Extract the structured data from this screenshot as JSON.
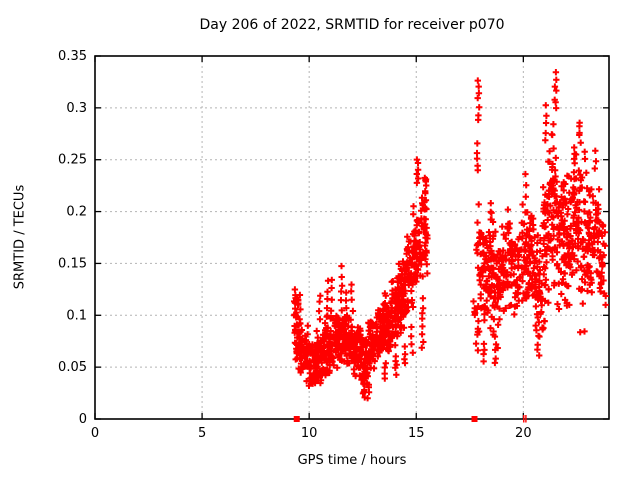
{
  "window": {
    "background": "#ffffff",
    "text_color": "#000000"
  },
  "chart_data": {
    "type": "scatter",
    "title": "Day 206 of 2022, SRMTID for receiver p070",
    "xlabel": "GPS time / hours",
    "ylabel": "SRMTID / TECUs",
    "xlim": [
      0,
      24
    ],
    "ylim": [
      0,
      0.35
    ],
    "xticks": [
      0,
      5,
      10,
      15,
      20
    ],
    "xtick_labels": [
      "0",
      "5",
      "10",
      "15",
      "20"
    ],
    "yticks": [
      0,
      0.05,
      0.1,
      0.15,
      0.2,
      0.25,
      0.3,
      0.35
    ],
    "ytick_labels": [
      "0",
      "0.05",
      "0.1",
      "0.15",
      "0.2",
      "0.25",
      "0.3",
      "0.35"
    ],
    "grid": {
      "show": true,
      "style": "dashed",
      "color": "#b4b4b4"
    },
    "legend": {
      "show": false
    },
    "marker": {
      "shape": "plus",
      "color": "#ff0000",
      "size": 7
    },
    "axis_color": "#000000",
    "seed": 1234,
    "approx_point_count": 1850,
    "data_coverage": {
      "gap_hours": [
        [
          0,
          9.3
        ],
        [
          15.6,
          17.65
        ],
        [
          23.85,
          24
        ]
      ]
    },
    "series": [
      {
        "name": "SRMTID",
        "point_clusters": [
          [
            9.3,
            9.6,
            48,
            0.042,
            0.115
          ],
          [
            9.3,
            9.6,
            12,
            0.1,
            0.128
          ],
          [
            9.6,
            9.95,
            48,
            0.033,
            0.095
          ],
          [
            9.95,
            10.3,
            52,
            0.028,
            0.082
          ],
          [
            10.3,
            10.65,
            55,
            0.03,
            0.088
          ],
          [
            10.65,
            11.0,
            55,
            0.038,
            0.1
          ],
          [
            11.0,
            11.35,
            52,
            0.045,
            0.105
          ],
          [
            11.35,
            11.7,
            55,
            0.048,
            0.108
          ],
          [
            11.7,
            12.05,
            55,
            0.045,
            0.1
          ],
          [
            12.05,
            12.4,
            50,
            0.038,
            0.095
          ],
          [
            12.4,
            12.75,
            48,
            0.028,
            0.088
          ],
          [
            12.75,
            13.1,
            50,
            0.045,
            0.1
          ],
          [
            13.1,
            13.45,
            55,
            0.055,
            0.112
          ],
          [
            13.45,
            13.8,
            58,
            0.058,
            0.125
          ],
          [
            13.8,
            14.15,
            58,
            0.065,
            0.142
          ],
          [
            14.15,
            14.5,
            58,
            0.078,
            0.158
          ],
          [
            14.5,
            14.85,
            55,
            0.092,
            0.18
          ],
          [
            14.85,
            15.2,
            52,
            0.11,
            0.225
          ],
          [
            15.2,
            15.55,
            40,
            0.12,
            0.245
          ],
          [
            17.65,
            17.95,
            14,
            0.058,
            0.12
          ],
          [
            17.8,
            17.98,
            10,
            0.14,
            0.21
          ],
          [
            17.95,
            18.3,
            45,
            0.072,
            0.205
          ],
          [
            18.3,
            18.6,
            50,
            0.082,
            0.218
          ],
          [
            18.6,
            18.9,
            38,
            0.058,
            0.19
          ],
          [
            18.9,
            19.2,
            32,
            0.09,
            0.2
          ],
          [
            19.2,
            19.55,
            40,
            0.1,
            0.22
          ],
          [
            19.55,
            19.9,
            34,
            0.088,
            0.19
          ],
          [
            19.9,
            20.2,
            38,
            0.105,
            0.215
          ],
          [
            20.2,
            20.55,
            45,
            0.1,
            0.212
          ],
          [
            20.55,
            20.9,
            45,
            0.062,
            0.18
          ],
          [
            20.9,
            21.2,
            45,
            0.08,
            0.26
          ],
          [
            21.2,
            21.55,
            50,
            0.118,
            0.3
          ],
          [
            21.55,
            21.9,
            50,
            0.1,
            0.258
          ],
          [
            21.9,
            22.2,
            45,
            0.082,
            0.248
          ],
          [
            22.2,
            22.55,
            45,
            0.118,
            0.262
          ],
          [
            22.55,
            22.9,
            45,
            0.065,
            0.27
          ],
          [
            22.9,
            23.2,
            40,
            0.1,
            0.248
          ],
          [
            23.2,
            23.55,
            35,
            0.118,
            0.238
          ],
          [
            23.55,
            23.85,
            30,
            0.1,
            0.208
          ]
        ],
        "point_columns": [
          [
            10.5,
            0.095,
            0.12,
            4
          ],
          [
            10.85,
            0.1,
            0.132,
            5
          ],
          [
            11.05,
            0.105,
            0.136,
            4
          ],
          [
            11.5,
            0.105,
            0.146,
            6
          ],
          [
            11.75,
            0.1,
            0.122,
            4
          ],
          [
            12.0,
            0.105,
            0.13,
            4
          ],
          [
            12.55,
            0.02,
            0.032,
            5
          ],
          [
            12.75,
            0.02,
            0.034,
            4
          ],
          [
            13.55,
            0.04,
            0.055,
            4
          ],
          [
            14.05,
            0.044,
            0.062,
            5
          ],
          [
            14.45,
            0.052,
            0.07,
            4
          ],
          [
            14.8,
            0.065,
            0.088,
            4
          ],
          [
            15.05,
            0.228,
            0.25,
            6
          ],
          [
            15.3,
            0.068,
            0.115,
            8
          ],
          [
            15.45,
            0.15,
            0.232,
            7
          ],
          [
            17.9,
            0.288,
            0.327,
            7
          ],
          [
            17.87,
            0.238,
            0.265,
            5
          ],
          [
            18.15,
            0.055,
            0.074,
            4
          ],
          [
            18.7,
            0.054,
            0.072,
            4
          ],
          [
            20.1,
            0.215,
            0.235,
            3
          ],
          [
            20.7,
            0.06,
            0.08,
            4
          ],
          [
            21.05,
            0.268,
            0.303,
            5
          ],
          [
            21.5,
            0.298,
            0.333,
            7
          ],
          [
            22.4,
            0.248,
            0.262,
            4
          ],
          [
            22.65,
            0.268,
            0.287,
            5
          ],
          [
            23.35,
            0.24,
            0.258,
            3
          ]
        ]
      }
    ],
    "baseline_markers": {
      "description": "red markers drawn on the x-axis at y=0",
      "filled_squares_x": [
        9.42,
        17.72
      ],
      "tick_marks_x": [
        20.02,
        20.12
      ],
      "y": 0,
      "color": "#ff0000"
    }
  }
}
